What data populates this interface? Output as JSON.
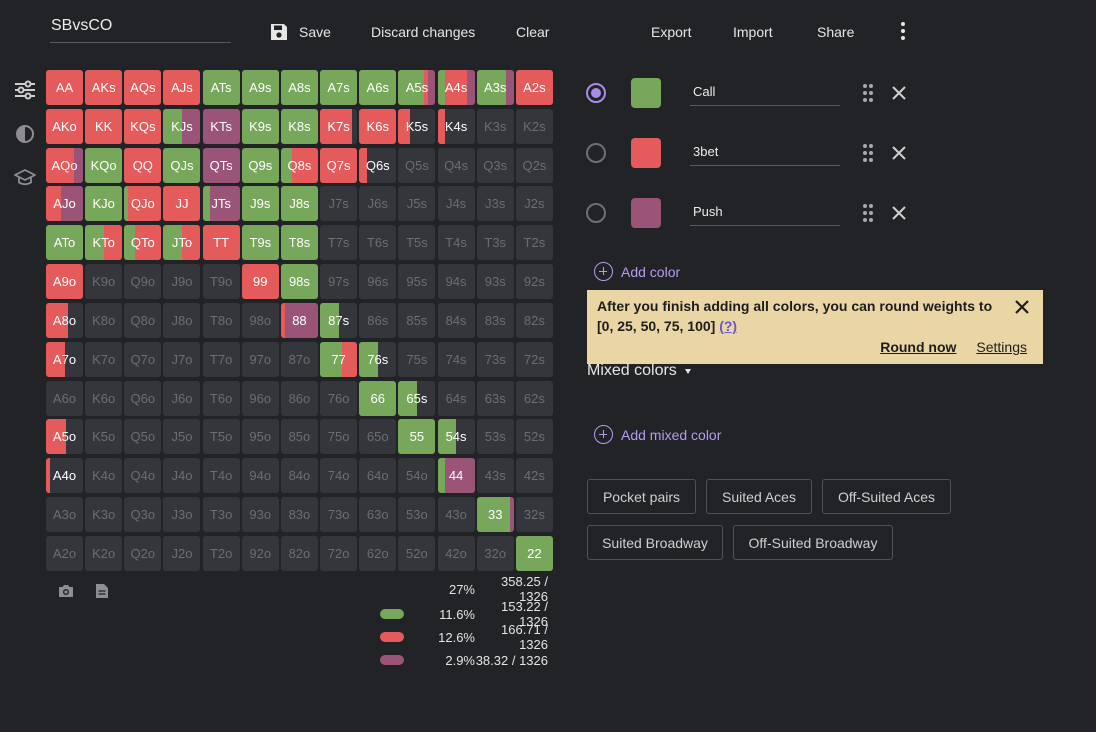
{
  "header": {
    "range_name": "SBvsCO",
    "save_label": "Save",
    "discard_label": "Discard changes",
    "clear_label": "Clear",
    "export_label": "Export",
    "import_label": "Import",
    "share_label": "Share"
  },
  "palette": {
    "call": "#77a75a",
    "threebet": "#e55a5a",
    "push": "#9a5478",
    "empty": "#34363b",
    "accent": "#a98be8"
  },
  "icons": {
    "save": "floppy-disk-icon",
    "menu": "kebab-menu-icon",
    "ranges": "sliders-icon",
    "theme": "contrast-icon",
    "training": "graduation-cap-icon",
    "screenshot": "camera-icon",
    "notes": "document-icon"
  },
  "grid": {
    "rows": [
      [
        "AA",
        "AKs",
        "AQs",
        "AJs",
        "ATs",
        "A9s",
        "A8s",
        "A7s",
        "A6s",
        "A5s",
        "A4s",
        "A3s",
        "A2s"
      ],
      [
        "AKo",
        "KK",
        "KQs",
        "KJs",
        "KTs",
        "K9s",
        "K8s",
        "K7s",
        "K6s",
        "K5s",
        "K4s",
        "K3s",
        "K2s"
      ],
      [
        "AQo",
        "KQo",
        "QQ",
        "QJs",
        "QTs",
        "Q9s",
        "Q8s",
        "Q7s",
        "Q6s",
        "Q5s",
        "Q4s",
        "Q3s",
        "Q2s"
      ],
      [
        "AJo",
        "KJo",
        "QJo",
        "JJ",
        "JTs",
        "J9s",
        "J8s",
        "J7s",
        "J6s",
        "J5s",
        "J4s",
        "J3s",
        "J2s"
      ],
      [
        "ATo",
        "KTo",
        "QTo",
        "JTo",
        "TT",
        "T9s",
        "T8s",
        "T7s",
        "T6s",
        "T5s",
        "T4s",
        "T3s",
        "T2s"
      ],
      [
        "A9o",
        "K9o",
        "Q9o",
        "J9o",
        "T9o",
        "99",
        "98s",
        "97s",
        "96s",
        "95s",
        "94s",
        "93s",
        "92s"
      ],
      [
        "A8o",
        "K8o",
        "Q8o",
        "J8o",
        "T8o",
        "98o",
        "88",
        "87s",
        "86s",
        "85s",
        "84s",
        "83s",
        "82s"
      ],
      [
        "A7o",
        "K7o",
        "Q7o",
        "J7o",
        "T7o",
        "97o",
        "87o",
        "77",
        "76s",
        "75s",
        "74s",
        "73s",
        "72s"
      ],
      [
        "A6o",
        "K6o",
        "Q6o",
        "J6o",
        "T6o",
        "96o",
        "86o",
        "76o",
        "66",
        "65s",
        "64s",
        "63s",
        "62s"
      ],
      [
        "A5o",
        "K5o",
        "Q5o",
        "J5o",
        "T5o",
        "95o",
        "85o",
        "75o",
        "65o",
        "55",
        "54s",
        "53s",
        "52s"
      ],
      [
        "A4o",
        "K4o",
        "Q4o",
        "J4o",
        "T4o",
        "94o",
        "84o",
        "74o",
        "64o",
        "54o",
        "44",
        "43s",
        "42s"
      ],
      [
        "A3o",
        "K3o",
        "Q3o",
        "J3o",
        "T3o",
        "93o",
        "83o",
        "73o",
        "63o",
        "53o",
        "43o",
        "33",
        "32s"
      ],
      [
        "A2o",
        "K2o",
        "Q2o",
        "J2o",
        "T2o",
        "92o",
        "82o",
        "72o",
        "62o",
        "52o",
        "42o",
        "32o",
        "22"
      ]
    ],
    "weights": {
      "AA": [
        0,
        100,
        0
      ],
      "AKs": [
        0,
        100,
        0
      ],
      "AQs": [
        0,
        100,
        0
      ],
      "AJs": [
        0,
        100,
        0
      ],
      "ATs": [
        100,
        0,
        0
      ],
      "A9s": [
        100,
        0,
        0
      ],
      "A8s": [
        100,
        0,
        0
      ],
      "A7s": [
        100,
        0,
        0
      ],
      "A6s": [
        100,
        0,
        0
      ],
      "A5s": [
        70,
        10,
        20
      ],
      "A4s": [
        20,
        60,
        20
      ],
      "A3s": [
        80,
        0,
        20
      ],
      "A2s": [
        0,
        100,
        0
      ],
      "AKo": [
        0,
        100,
        0
      ],
      "KK": [
        0,
        100,
        0
      ],
      "KQs": [
        0,
        100,
        0
      ],
      "KJs": [
        50,
        0,
        50
      ],
      "KTs": [
        0,
        0,
        100
      ],
      "K9s": [
        100,
        0,
        0
      ],
      "K8s": [
        100,
        0,
        0
      ],
      "K7s": [
        0,
        85,
        0
      ],
      "K6s": [
        0,
        100,
        0
      ],
      "K5s": [
        0,
        30,
        0
      ],
      "K4s": [
        0,
        20,
        0
      ],
      "AQo": [
        0,
        75,
        25
      ],
      "KQo": [
        100,
        0,
        0
      ],
      "QQ": [
        0,
        100,
        0
      ],
      "QJs": [
        100,
        0,
        0
      ],
      "QTs": [
        0,
        0,
        100
      ],
      "Q9s": [
        100,
        0,
        0
      ],
      "Q8s": [
        30,
        70,
        0
      ],
      "Q7s": [
        0,
        100,
        0
      ],
      "Q6s": [
        0,
        20,
        0
      ],
      "AJo": [
        0,
        40,
        60
      ],
      "KJo": [
        100,
        0,
        0
      ],
      "QJo": [
        10,
        90,
        0
      ],
      "JJ": [
        0,
        100,
        0
      ],
      "JTs": [
        20,
        0,
        80
      ],
      "J9s": [
        100,
        0,
        0
      ],
      "J8s": [
        100,
        0,
        0
      ],
      "ATo": [
        100,
        0,
        0
      ],
      "KTo": [
        50,
        50,
        0
      ],
      "QTo": [
        30,
        70,
        0
      ],
      "JTo": [
        50,
        50,
        0
      ],
      "TT": [
        0,
        100,
        0
      ],
      "T9s": [
        100,
        0,
        0
      ],
      "T8s": [
        100,
        0,
        0
      ],
      "T7s": [
        0,
        0,
        0
      ],
      "A9o": [
        0,
        100,
        0
      ],
      "99": [
        0,
        100,
        0
      ],
      "98s": [
        100,
        0,
        0
      ],
      "97s": [
        0,
        0,
        0
      ],
      "A8o": [
        0,
        60,
        0
      ],
      "88": [
        0,
        10,
        90
      ],
      "87s": [
        50,
        0,
        0
      ],
      "A7o": [
        0,
        50,
        0
      ],
      "77": [
        60,
        40,
        0
      ],
      "76s": [
        50,
        0,
        0
      ],
      "A6o": [
        0,
        0,
        0
      ],
      "66": [
        100,
        0,
        0
      ],
      "65s": [
        50,
        0,
        0
      ],
      "A5o": [
        0,
        55,
        0
      ],
      "55": [
        100,
        0,
        0
      ],
      "54s": [
        50,
        0,
        0
      ],
      "A4o": [
        0,
        10,
        0
      ],
      "44": [
        20,
        0,
        80
      ],
      "33": [
        90,
        0,
        10
      ],
      "22": [
        100,
        0,
        0
      ]
    }
  },
  "stats": [
    {
      "pct": "27%",
      "count": "358.25 / 1326"
    },
    {
      "pct": "11.6%",
      "count": "153.22 / 1326"
    },
    {
      "pct": "12.6%",
      "count": "166.71 / 1326"
    },
    {
      "pct": "2.9%",
      "count": "38.32 / 1326"
    }
  ],
  "colors": [
    {
      "name": "Call",
      "hex": "#77a75a",
      "selected": true
    },
    {
      "name": "3bet",
      "hex": "#e55a5a",
      "selected": false
    },
    {
      "name": "Push",
      "hex": "#9a5478",
      "selected": false
    }
  ],
  "add_color_label": "Add color",
  "notice": {
    "message": "After you finish adding all colors, you can round weights to [0, 25, 50, 75, 100]",
    "help": "(?)",
    "round_now": "Round now",
    "settings": "Settings"
  },
  "mixed_colors_label": "Mixed colors",
  "add_mixed_color_label": "Add mixed color",
  "presets": [
    "Pocket pairs",
    "Suited Aces",
    "Off-Suited Aces",
    "Suited Broadway",
    "Off-Suited Broadway"
  ]
}
